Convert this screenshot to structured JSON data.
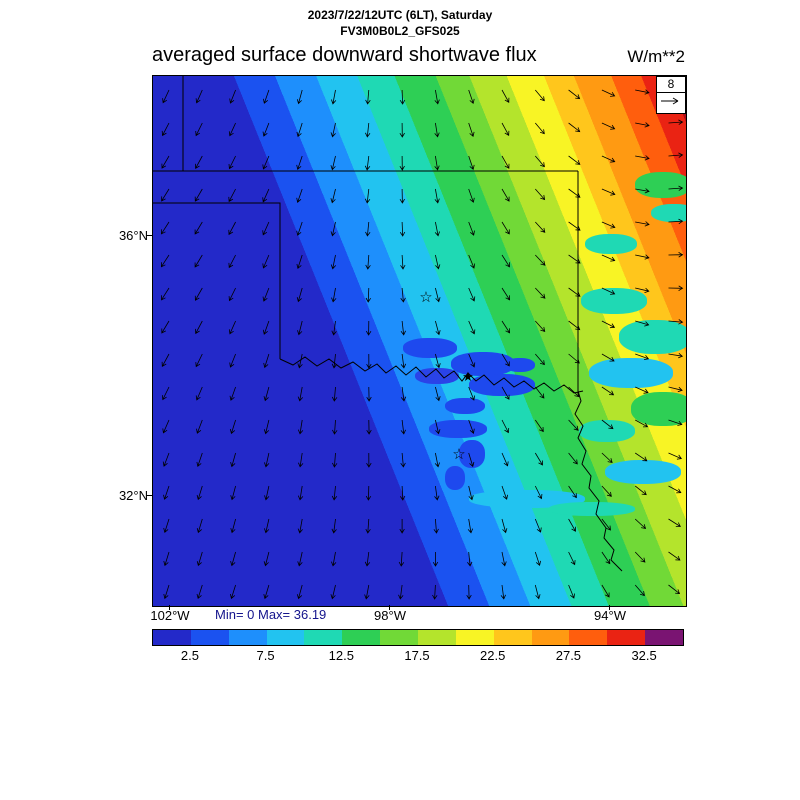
{
  "header": {
    "date_line": "2023/7/22/12UTC (6LT), Saturday",
    "model_line": "FV3M0B0L2_GFS025",
    "title": "averaged surface downward shortwave flux",
    "units": "W/m**2"
  },
  "map_annotations": {
    "min_max": "Min= 0 Max= 36.19",
    "vector_ref_label": "8",
    "star_marker": "☆",
    "filled_marker": "★"
  },
  "axes": {
    "lat_ticks": [
      {
        "label": "36°N"
      },
      {
        "label": "32°N"
      }
    ],
    "lon_ticks": [
      {
        "label": "102°W"
      },
      {
        "label": "98°W"
      },
      {
        "label": "94°W"
      }
    ]
  },
  "chart_data": {
    "type": "heatmap",
    "title": "averaged surface downward shortwave flux",
    "units": "W/m**2",
    "datetime": "2023/7/22/12UTC (6LT), Saturday",
    "model": "FV3M0B0L2_GFS025",
    "min": 0,
    "max": 36.19,
    "vector_reference": 8,
    "x_axis": {
      "type": "longitude",
      "tick_labels": [
        "102°W",
        "98°W",
        "94°W"
      ]
    },
    "y_axis": {
      "type": "latitude",
      "tick_labels": [
        "36°N",
        "32°N"
      ]
    },
    "colorbar": {
      "interval": 2.5,
      "tick_labels": [
        "2.5",
        "7.5",
        "12.5",
        "17.5",
        "22.5",
        "27.5",
        "32.5"
      ],
      "colors": [
        "#2329c9",
        "#1b52f0",
        "#1e8ffc",
        "#22c3f0",
        "#1fd9b4",
        "#2ecf55",
        "#71d937",
        "#b4e42c",
        "#f8f425",
        "#ffc61c",
        "#ff9a12",
        "#ff5e0d",
        "#ea2313",
        "#7a1472"
      ]
    },
    "pattern": "Flux near 0 over the southwest half (diagonal banded increase toward the northeast, dark red > 32.5 in NE corner); scattered low-flux patches along the Red River; wind vectors overlaid; state borders of TX/OK region shown; lat 32-36N, lon 94-102W"
  }
}
